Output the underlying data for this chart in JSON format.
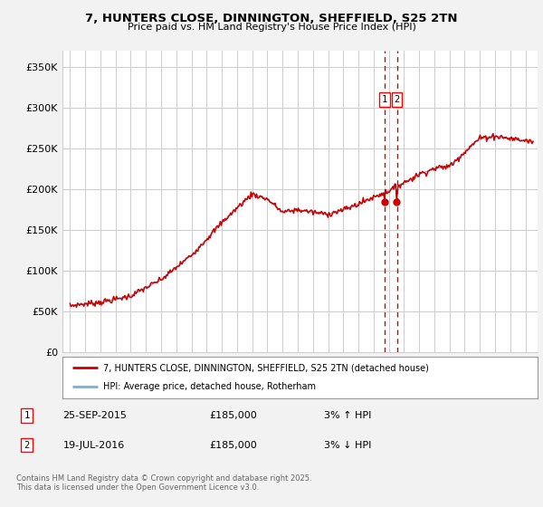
{
  "title1": "7, HUNTERS CLOSE, DINNINGTON, SHEFFIELD, S25 2TN",
  "title2": "Price paid vs. HM Land Registry's House Price Index (HPI)",
  "ylabel_ticks": [
    "£0",
    "£50K",
    "£100K",
    "£150K",
    "£200K",
    "£250K",
    "£300K",
    "£350K"
  ],
  "ytick_values": [
    0,
    50000,
    100000,
    150000,
    200000,
    250000,
    300000,
    350000
  ],
  "ylim": [
    0,
    370000
  ],
  "xlim_start": 1994.5,
  "xlim_end": 2025.8,
  "legend_line1": "7, HUNTERS CLOSE, DINNINGTON, SHEFFIELD, S25 2TN (detached house)",
  "legend_line2": "HPI: Average price, detached house, Rotherham",
  "sale1_date": "25-SEP-2015",
  "sale1_price": "£185,000",
  "sale1_hpi": "3% ↑ HPI",
  "sale1_year": 2015.73,
  "sale2_date": "19-JUL-2016",
  "sale2_price": "£185,000",
  "sale2_hpi": "3% ↓ HPI",
  "sale2_year": 2016.54,
  "footnote": "Contains HM Land Registry data © Crown copyright and database right 2025.\nThis data is licensed under the Open Government Licence v3.0.",
  "red_color": "#cc0000",
  "blue_color": "#88aacc",
  "bg_color": "#f2f2f2",
  "plot_bg": "#ffffff",
  "grid_color": "#cccccc"
}
